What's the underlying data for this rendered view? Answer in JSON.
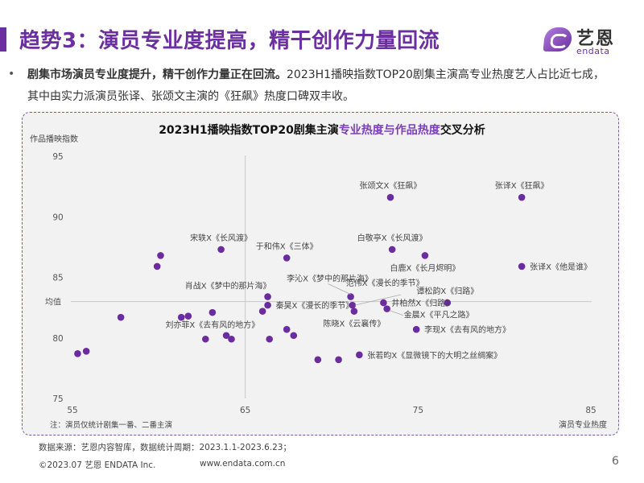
{
  "header": {
    "title": "趋势3：演员专业度提高，精干创作力量回流",
    "logo_cn": "艺恩",
    "logo_en": "endata"
  },
  "bullet": {
    "marker": "•",
    "bold_text": "剧集市场演员专业度提升，精干创作力量正在回流。",
    "text": "2023H1播映指数TOP20剧集主演高专业热度艺人占比近七成，其中由实力派演员张译、张颂文主演的《狂飙》热度口碑双丰收。"
  },
  "chart_data": {
    "type": "scatter",
    "title_parts": [
      {
        "text": "2023H1播映指数TOP20剧集主演",
        "highlight": false
      },
      {
        "text": "专业热度与作品热度",
        "highlight": true
      },
      {
        "text": "交叉分析",
        "highlight": false
      }
    ],
    "xlabel": "演员专业热度",
    "ylabel": "作品播映指数",
    "xlim": [
      55,
      85
    ],
    "ylim": [
      75,
      95
    ],
    "xticks": [
      55,
      65,
      75,
      85
    ],
    "yticks": [
      75,
      80,
      85,
      90,
      95
    ],
    "mean_x": 65,
    "mean_y": 83.0,
    "mean_label": "均值",
    "note": "注：演员仅统计剧集一番、二番主演",
    "point_color": "#6a2c9e",
    "highlight_color": "#7b3fb5",
    "points": [
      {
        "x": 73.4,
        "y": 91.6,
        "label": "张颂文X《狂飙》",
        "lpos": "above"
      },
      {
        "x": 81.0,
        "y": 91.6,
        "label": "张译X《狂飙》",
        "lpos": "above"
      },
      {
        "x": 63.6,
        "y": 87.3,
        "label": "宋轶X《长风渡》",
        "lpos": "above"
      },
      {
        "x": 73.5,
        "y": 87.3,
        "label": "白敬亭X《长风渡》",
        "lpos": "above"
      },
      {
        "x": 67.4,
        "y": 86.6,
        "label": "于和伟X《三体》",
        "lpos": "above"
      },
      {
        "x": 75.4,
        "y": 86.8,
        "label": "白鹿X《长月烬明》",
        "lpos": "below"
      },
      {
        "x": 81.0,
        "y": 85.9,
        "label": "张译X《他是谁》",
        "lpos": "right"
      },
      {
        "x": 66.3,
        "y": 83.4,
        "label": "肖战X《梦中的那片海》",
        "lpos": "above-left"
      },
      {
        "x": 71.1,
        "y": 83.4,
        "label": "李沁X《梦中的那片海》",
        "lpos": "leader-upleft"
      },
      {
        "x": 71.2,
        "y": 82.7,
        "label": "范伟X《漫长的季节》",
        "lpos": "leader-upright"
      },
      {
        "x": 66.3,
        "y": 82.7,
        "label": "秦昊X《漫长的季节》",
        "lpos": "right"
      },
      {
        "x": 76.7,
        "y": 82.9,
        "label": "谭松韵X《归路》",
        "lpos": "above"
      },
      {
        "x": 73.0,
        "y": 82.9,
        "label": "井柏然X《归路》",
        "lpos": "right"
      },
      {
        "x": 73.2,
        "y": 82.4,
        "label": "金晨X《平凡之路》",
        "lpos": "leader-right"
      },
      {
        "x": 71.3,
        "y": 82.2,
        "label": "陈晓X《云襄传》",
        "lpos": "below"
      },
      {
        "x": 63.1,
        "y": 82.1,
        "label": "刘亦菲X《去有风的地方》",
        "lpos": "below"
      },
      {
        "x": 74.9,
        "y": 80.7,
        "label": "李现X《去有风的地方》",
        "lpos": "right"
      },
      {
        "x": 71.6,
        "y": 78.6,
        "label": "张若昀X《显微镜下的大明之丝绸案》",
        "lpos": "right"
      },
      {
        "x": 55.3,
        "y": 78.7,
        "label": ""
      },
      {
        "x": 55.8,
        "y": 78.9,
        "label": ""
      },
      {
        "x": 57.8,
        "y": 81.7,
        "label": ""
      },
      {
        "x": 61.3,
        "y": 81.7,
        "label": ""
      },
      {
        "x": 61.7,
        "y": 81.8,
        "label": ""
      },
      {
        "x": 62.7,
        "y": 79.9,
        "label": ""
      },
      {
        "x": 63.9,
        "y": 80.2,
        "label": ""
      },
      {
        "x": 64.2,
        "y": 79.9,
        "label": ""
      },
      {
        "x": 59.9,
        "y": 85.9,
        "label": ""
      },
      {
        "x": 60.1,
        "y": 86.8,
        "label": ""
      },
      {
        "x": 66.0,
        "y": 82.2,
        "label": ""
      },
      {
        "x": 67.4,
        "y": 80.7,
        "label": ""
      },
      {
        "x": 67.8,
        "y": 80.2,
        "label": ""
      },
      {
        "x": 66.4,
        "y": 79.9,
        "label": ""
      },
      {
        "x": 69.2,
        "y": 78.2,
        "label": ""
      },
      {
        "x": 70.4,
        "y": 78.2,
        "label": ""
      }
    ]
  },
  "footer": {
    "source": "数据来源：艺恩内容智库，数据统计周期：2023.1.1-2023.6.23；",
    "copyright": "©2023.07 艺恩 ENDATA Inc.",
    "url": "www.endata.com.cn",
    "page_number": "6"
  }
}
